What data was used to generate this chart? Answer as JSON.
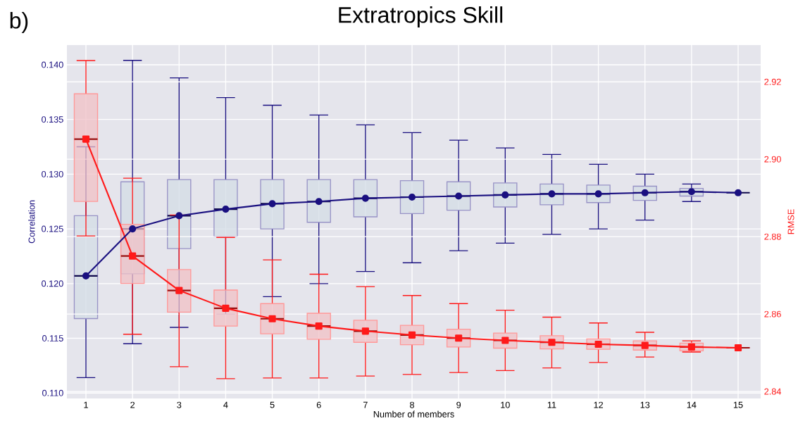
{
  "chart_data": {
    "type": "box",
    "title": "Extratropics Skill",
    "annotations": [
      "b)"
    ],
    "xlabel": "Number of members",
    "ylabel": "Correlation",
    "y2label": "RMSE",
    "categories": [
      "1",
      "2",
      "3",
      "4",
      "5",
      "6",
      "7",
      "8",
      "9",
      "10",
      "11",
      "12",
      "13",
      "14",
      "15"
    ],
    "ylim": [
      0.1095,
      0.1418
    ],
    "yticks": [
      {
        "value": 0.11,
        "label": "0.110"
      },
      {
        "value": 0.115,
        "label": "0.115"
      },
      {
        "value": 0.12,
        "label": "0.120"
      },
      {
        "value": 0.125,
        "label": "0.125"
      },
      {
        "value": 0.13,
        "label": "0.130"
      },
      {
        "value": 0.135,
        "label": "0.135"
      },
      {
        "value": 0.14,
        "label": "0.140"
      }
    ],
    "y2lim": [
      2.8382,
      2.9295
    ],
    "y2ticks": [
      2.84,
      2.86,
      2.88,
      {
        "value": 2.9,
        "label": "2.90"
      },
      2.92
    ],
    "grid": true,
    "series": [
      {
        "color": "#d3dce6",
        "boxes": [
          {
            "low": 0.1114,
            "q1": 0.1168,
            "median": 0.1207,
            "q3": 0.1262,
            "high": 0.1325
          },
          {
            "low": 0.1145,
            "q1": 0.1209,
            "median": 0.125,
            "q3": 0.1293,
            "high": 0.1404
          },
          {
            "low": 0.116,
            "q1": 0.1232,
            "median": 0.1262,
            "q3": 0.1295,
            "high": 0.1388
          },
          {
            "low": 0.1172,
            "q1": 0.1243,
            "median": 0.1268,
            "q3": 0.1295,
            "high": 0.137
          },
          {
            "low": 0.1188,
            "q1": 0.125,
            "median": 0.1273,
            "q3": 0.1295,
            "high": 0.1363
          },
          {
            "low": 0.12,
            "q1": 0.1256,
            "median": 0.1275,
            "q3": 0.1295,
            "high": 0.1354
          },
          {
            "low": 0.1211,
            "q1": 0.1261,
            "median": 0.1278,
            "q3": 0.1295,
            "high": 0.1345
          },
          {
            "low": 0.1219,
            "q1": 0.1264,
            "median": 0.1279,
            "q3": 0.1294,
            "high": 0.1338
          },
          {
            "low": 0.123,
            "q1": 0.1267,
            "median": 0.128,
            "q3": 0.1293,
            "high": 0.1331
          },
          {
            "low": 0.1237,
            "q1": 0.127,
            "median": 0.1281,
            "q3": 0.1292,
            "high": 0.1324
          },
          {
            "low": 0.1245,
            "q1": 0.1272,
            "median": 0.1282,
            "q3": 0.1291,
            "high": 0.1318
          },
          {
            "low": 0.125,
            "q1": 0.1274,
            "median": 0.1282,
            "q3": 0.129,
            "high": 0.1309
          },
          {
            "low": 0.1258,
            "q1": 0.1276,
            "median": 0.1283,
            "q3": 0.1289,
            "high": 0.13
          },
          {
            "low": 0.1275,
            "q1": 0.128,
            "median": 0.1284,
            "q3": 0.1287,
            "high": 0.1291
          },
          {
            "low": 0.1283,
            "q1": 0.1283,
            "median": 0.1283,
            "q3": 0.1283,
            "high": 0.1283
          }
        ]
      },
      {
        "color": "#f0c0c6",
        "axis": "y2",
        "boxes": [
          {
            "low": 2.8802,
            "q1": 2.8891,
            "median": 2.9052,
            "q3": 2.9169,
            "high": 2.9255
          },
          {
            "low": 2.8548,
            "q1": 2.8679,
            "median": 2.875,
            "q3": 2.8832,
            "high": 2.8951
          },
          {
            "low": 2.8464,
            "q1": 2.8605,
            "median": 2.8661,
            "q3": 2.8715,
            "high": 2.8856
          },
          {
            "low": 2.8433,
            "q1": 2.8569,
            "median": 2.8615,
            "q3": 2.8662,
            "high": 2.8798
          },
          {
            "low": 2.8435,
            "q1": 2.8549,
            "median": 2.8588,
            "q3": 2.8627,
            "high": 2.874
          },
          {
            "low": 2.8435,
            "q1": 2.8535,
            "median": 2.8569,
            "q3": 2.8602,
            "high": 2.8703
          },
          {
            "low": 2.844,
            "q1": 2.8527,
            "median": 2.8556,
            "q3": 2.8584,
            "high": 2.8671
          },
          {
            "low": 2.8444,
            "q1": 2.8521,
            "median": 2.8546,
            "q3": 2.8571,
            "high": 2.8648
          },
          {
            "low": 2.8449,
            "q1": 2.8515,
            "median": 2.8538,
            "q3": 2.8561,
            "high": 2.8627
          },
          {
            "low": 2.8454,
            "q1": 2.8512,
            "median": 2.8532,
            "q3": 2.8551,
            "high": 2.861
          },
          {
            "low": 2.8461,
            "q1": 2.851,
            "median": 2.8527,
            "q3": 2.8544,
            "high": 2.8592
          },
          {
            "low": 2.8475,
            "q1": 2.8509,
            "median": 2.8522,
            "q3": 2.8536,
            "high": 2.8577
          },
          {
            "low": 2.8489,
            "q1": 2.8507,
            "median": 2.8519,
            "q3": 2.8531,
            "high": 2.8553
          },
          {
            "low": 2.8502,
            "q1": 2.8505,
            "median": 2.8515,
            "q3": 2.8525,
            "high": 2.8531
          },
          {
            "low": 2.8513,
            "q1": 2.8513,
            "median": 2.8513,
            "q3": 2.8513,
            "high": 2.8513
          }
        ]
      },
      {
        "type": "line",
        "color": "#1a1080",
        "marker": "circle",
        "values": [
          0.1207,
          0.125,
          0.1262,
          0.1268,
          0.1273,
          0.1275,
          0.1278,
          0.1279,
          0.128,
          0.1281,
          0.1282,
          0.1282,
          0.1283,
          0.1284,
          0.1283
        ]
      },
      {
        "type": "line",
        "color": "#ff1a1a",
        "marker": "square",
        "axis": "y2",
        "values": [
          2.9052,
          2.875,
          2.8661,
          2.8615,
          2.8588,
          2.8569,
          2.8556,
          2.8546,
          2.8538,
          2.8532,
          2.8527,
          2.8522,
          2.8519,
          2.8515,
          2.8513
        ]
      }
    ]
  }
}
